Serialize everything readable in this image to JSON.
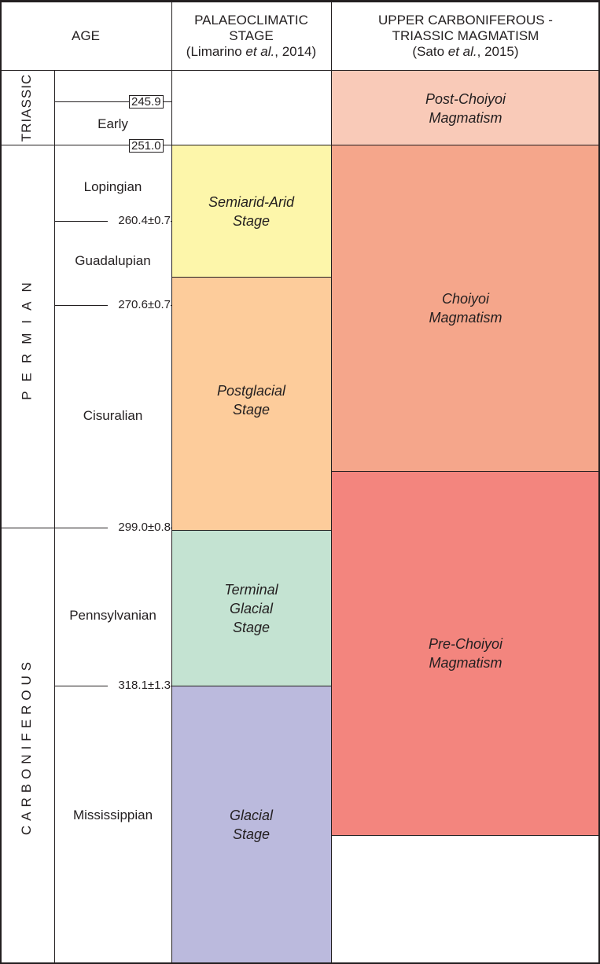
{
  "header": {
    "age": "AGE",
    "palaeo_line1": "PALAEOCLIMATIC",
    "palaeo_line2": "STAGE",
    "palaeo_ref_pre": "(Limarino ",
    "palaeo_ref_etal": "et al.",
    "palaeo_ref_post": ", 2014)",
    "magma_line1": "UPPER CARBONIFEROUS -",
    "magma_line2": "TRIASSIC MAGMATISM",
    "magma_ref_pre": "(Sato ",
    "magma_ref_etal": "et al.",
    "magma_ref_post": ", 2015)"
  },
  "periods": [
    "TRIASSIC",
    "PERMIAN",
    "CARBONIFEROUS"
  ],
  "epochs": [
    "Early",
    "Lopingian",
    "Guadalupian",
    "Cisuralian",
    "Pennsylvanian",
    "Mississippian"
  ],
  "ages": [
    "245.9",
    "251.0",
    "260.4±0.7",
    "270.6±0.7",
    "299.0±0.8",
    "318.1±1.3"
  ],
  "palaeoclimatic_stages": [
    {
      "l1": "Semiarid-Arid",
      "l2": "Stage",
      "color": "#fdf6aa"
    },
    {
      "l1": "Postglacial",
      "l2": "Stage",
      "color": "#fdcc9b"
    },
    {
      "l1": "Terminal",
      "l2": "Glacial",
      "l3": "Stage",
      "color": "#c4e3d2"
    },
    {
      "l1": "Glacial",
      "l2": "Stage",
      "color": "#bbbadd"
    }
  ],
  "magmatism": [
    {
      "l1": "Post-Choiyoi",
      "l2": "Magmatism",
      "color": "#f9cab8"
    },
    {
      "l1": "Choiyoi",
      "l2": "Magmatism",
      "color": "#f5a68b"
    },
    {
      "l1": "Pre-Choiyoi",
      "l2": "Magmatism",
      "color": "#f3857e"
    }
  ]
}
